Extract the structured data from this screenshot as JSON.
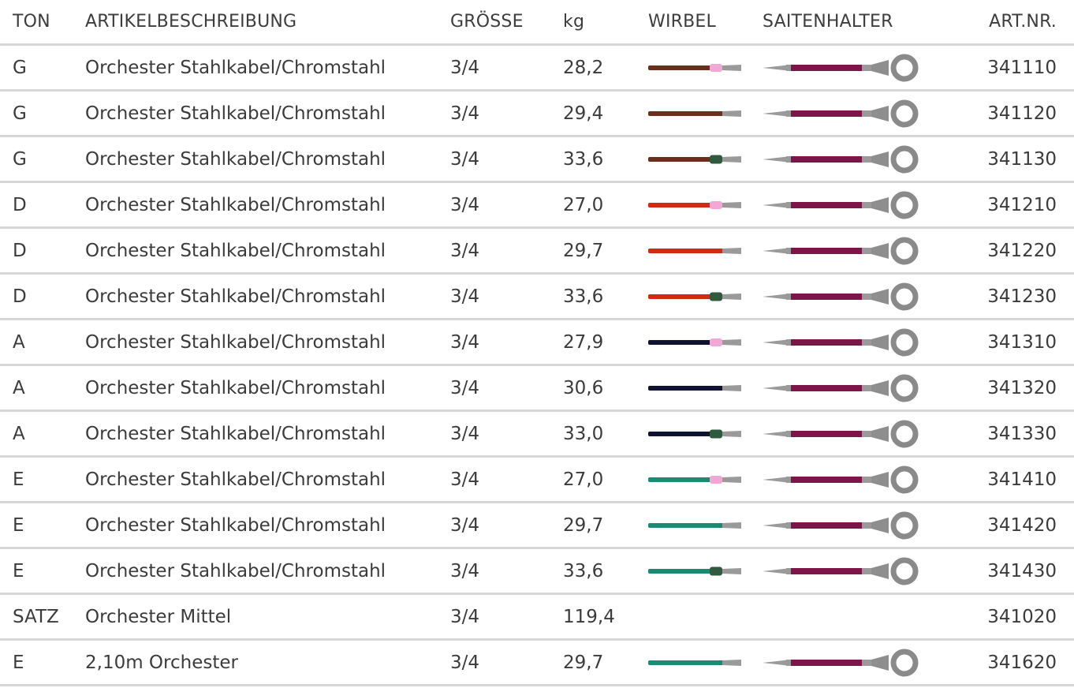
{
  "header": {
    "ton": "TON",
    "description": "ARTIKELBESCHREIBUNG",
    "size": "GRÖSSE",
    "kg": "kg",
    "wirbel": "WIRBEL",
    "saitenhalter": "SAITENHALTER",
    "art_nr": "ART.NR."
  },
  "colors": {
    "G": "#6b2e1a",
    "D": "#d22a12",
    "A": "#0f1230",
    "E": "#1a8a72",
    "saitenhalter": "#7d1549",
    "tip_soft": "#f2a7d6",
    "tip_hard": "#2f5a3e",
    "steel": "#9a9a9a"
  },
  "rows": [
    {
      "ton": "G",
      "description": "Orchester Stahlkabel/Chromstahl",
      "size": "3/4",
      "kg": "28,2",
      "art_nr": "341110",
      "string_color": "G",
      "tip": "soft",
      "show_images": true
    },
    {
      "ton": "G",
      "description": "Orchester Stahlkabel/Chromstahl",
      "size": "3/4",
      "kg": "29,4",
      "art_nr": "341120",
      "string_color": "G",
      "tip": "none",
      "show_images": true
    },
    {
      "ton": "G",
      "description": "Orchester Stahlkabel/Chromstahl",
      "size": "3/4",
      "kg": "33,6",
      "art_nr": "341130",
      "string_color": "G",
      "tip": "hard",
      "show_images": true
    },
    {
      "ton": "D",
      "description": "Orchester Stahlkabel/Chromstahl",
      "size": "3/4",
      "kg": "27,0",
      "art_nr": "341210",
      "string_color": "D",
      "tip": "soft",
      "show_images": true
    },
    {
      "ton": "D",
      "description": "Orchester Stahlkabel/Chromstahl",
      "size": "3/4",
      "kg": "29,7",
      "art_nr": "341220",
      "string_color": "D",
      "tip": "none",
      "show_images": true
    },
    {
      "ton": "D",
      "description": "Orchester Stahlkabel/Chromstahl",
      "size": "3/4",
      "kg": "33,6",
      "art_nr": "341230",
      "string_color": "D",
      "tip": "hard",
      "show_images": true
    },
    {
      "ton": "A",
      "description": "Orchester Stahlkabel/Chromstahl",
      "size": "3/4",
      "kg": "27,9",
      "art_nr": "341310",
      "string_color": "A",
      "tip": "soft",
      "show_images": true
    },
    {
      "ton": "A",
      "description": "Orchester Stahlkabel/Chromstahl",
      "size": "3/4",
      "kg": "30,6",
      "art_nr": "341320",
      "string_color": "A",
      "tip": "none",
      "show_images": true
    },
    {
      "ton": "A",
      "description": "Orchester Stahlkabel/Chromstahl",
      "size": "3/4",
      "kg": "33,0",
      "art_nr": "341330",
      "string_color": "A",
      "tip": "hard",
      "show_images": true
    },
    {
      "ton": "E",
      "description": "Orchester Stahlkabel/Chromstahl",
      "size": "3/4",
      "kg": "27,0",
      "art_nr": "341410",
      "string_color": "E",
      "tip": "soft",
      "show_images": true
    },
    {
      "ton": "E",
      "description": "Orchester Stahlkabel/Chromstahl",
      "size": "3/4",
      "kg": "29,7",
      "art_nr": "341420",
      "string_color": "E",
      "tip": "none",
      "show_images": true
    },
    {
      "ton": "E",
      "description": "Orchester Stahlkabel/Chromstahl",
      "size": "3/4",
      "kg": "33,6",
      "art_nr": "341430",
      "string_color": "E",
      "tip": "hard",
      "show_images": true
    },
    {
      "ton": "SATZ",
      "description": "Orchester Mittel",
      "size": "3/4",
      "kg": "119,4",
      "art_nr": "341020",
      "string_color": "",
      "tip": "none",
      "show_images": false
    },
    {
      "ton": "E",
      "description": "2,10m Orchester",
      "size": "3/4",
      "kg": "29,7",
      "art_nr": "341620",
      "string_color": "E",
      "tip": "none",
      "show_images": true
    }
  ]
}
